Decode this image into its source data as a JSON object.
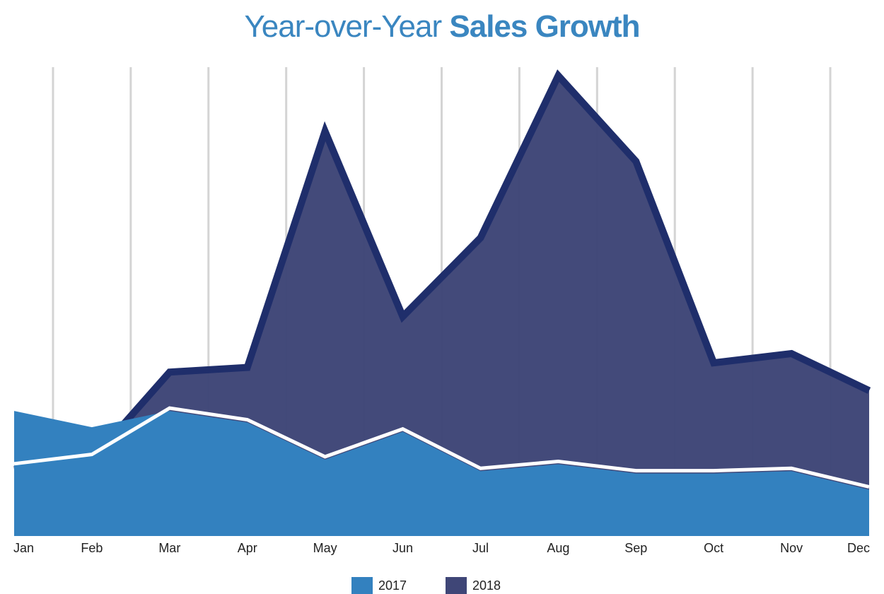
{
  "title": {
    "light": "Year-over-Year",
    "bold": "Sales Growth"
  },
  "colors": {
    "title": "#3a86c0",
    "series_2017": "#3381bf",
    "series_2018": "#3f4677",
    "overlap_band": "#1f2e6b",
    "separator": "#ffffff",
    "grid": "#d4d4d4"
  },
  "chart_data": {
    "type": "area",
    "categories": [
      "Jan",
      "Feb",
      "Mar",
      "Apr",
      "May",
      "Jun",
      "Jul",
      "Aug",
      "Sep",
      "Oct",
      "Nov",
      "Dec"
    ],
    "series": [
      {
        "name": "2017",
        "values": [
          27,
          23.5,
          27,
          24.5,
          16.5,
          22.5,
          14,
          15.5,
          13.5,
          13.5,
          14,
          10
        ]
      },
      {
        "name": "2018",
        "values": [
          15,
          17,
          36,
          37,
          88,
          48,
          65,
          100,
          81.5,
          38,
          40,
          32
        ]
      }
    ],
    "legend": [
      "2017",
      "2018"
    ],
    "legend_position": "bottom",
    "grid": "vertical",
    "ylim": [
      0,
      100
    ]
  }
}
